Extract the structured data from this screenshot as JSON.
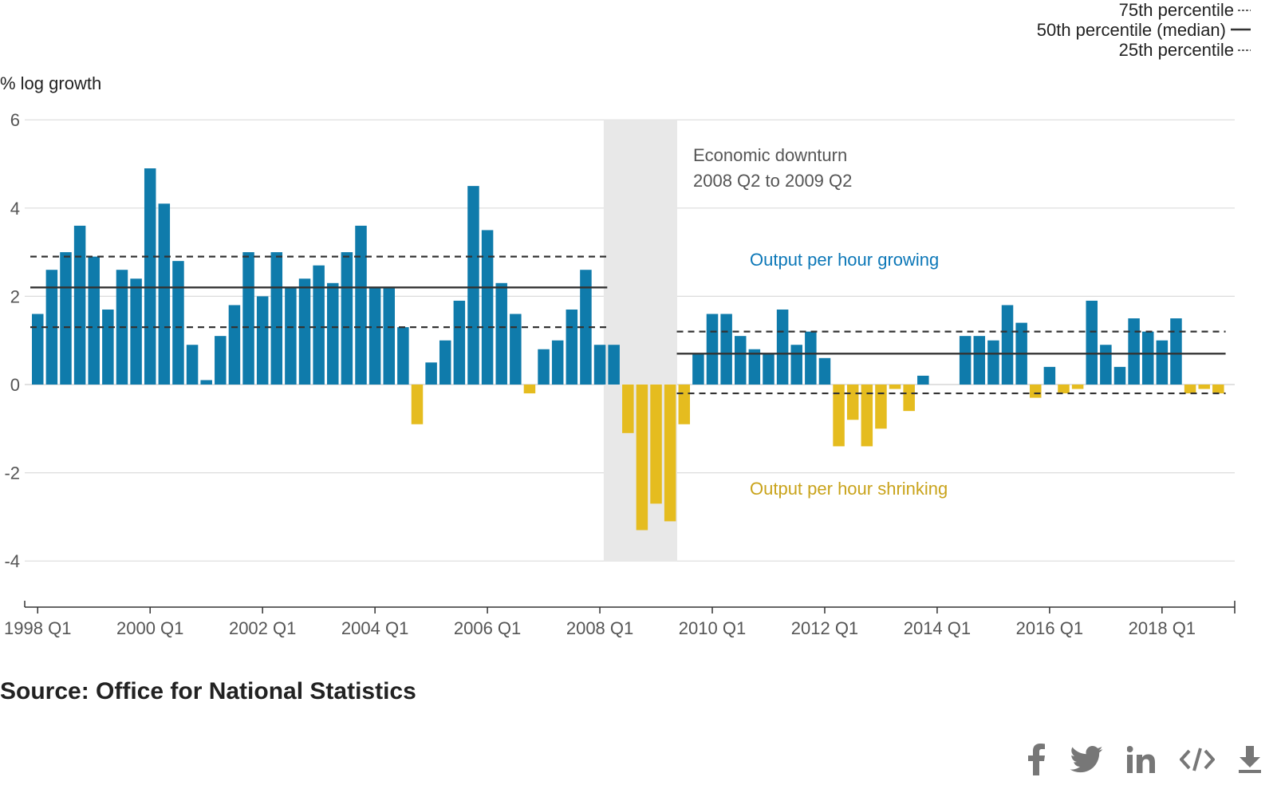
{
  "chart_data": {
    "type": "bar",
    "ylabel": "% log growth",
    "ylim": [
      -5,
      6
    ],
    "yticks": [
      6,
      4,
      2,
      0,
      -2,
      -4
    ],
    "xtick_labels": [
      "1998 Q1",
      "2000 Q1",
      "2002 Q1",
      "2004 Q1",
      "2006 Q1",
      "2008 Q1",
      "2010 Q1",
      "2012 Q1",
      "2014 Q1",
      "2016 Q1",
      "2018 Q1"
    ],
    "categories": [
      "1998 Q1",
      "1998 Q2",
      "1998 Q3",
      "1998 Q4",
      "1999 Q1",
      "1999 Q2",
      "1999 Q3",
      "1999 Q4",
      "2000 Q1",
      "2000 Q2",
      "2000 Q3",
      "2000 Q4",
      "2001 Q1",
      "2001 Q2",
      "2001 Q3",
      "2001 Q4",
      "2002 Q1",
      "2002 Q2",
      "2002 Q3",
      "2002 Q4",
      "2003 Q1",
      "2003 Q2",
      "2003 Q3",
      "2003 Q4",
      "2004 Q1",
      "2004 Q2",
      "2004 Q3",
      "2004 Q4",
      "2005 Q1",
      "2005 Q2",
      "2005 Q3",
      "2005 Q4",
      "2006 Q1",
      "2006 Q2",
      "2006 Q3",
      "2006 Q4",
      "2007 Q1",
      "2007 Q2",
      "2007 Q3",
      "2007 Q4",
      "2008 Q1",
      "2008 Q2",
      "2008 Q3",
      "2008 Q4",
      "2009 Q1",
      "2009 Q2",
      "2009 Q3",
      "2009 Q4",
      "2010 Q1",
      "2010 Q2",
      "2010 Q3",
      "2010 Q4",
      "2011 Q1",
      "2011 Q2",
      "2011 Q3",
      "2011 Q4",
      "2012 Q1",
      "2012 Q2",
      "2012 Q3",
      "2012 Q4",
      "2013 Q1",
      "2013 Q2",
      "2013 Q3",
      "2013 Q4",
      "2014 Q1",
      "2014 Q2",
      "2014 Q3",
      "2014 Q4",
      "2015 Q1",
      "2015 Q2",
      "2015 Q3",
      "2015 Q4",
      "2016 Q1",
      "2016 Q2",
      "2016 Q3",
      "2016 Q4",
      "2017 Q1",
      "2017 Q2",
      "2017 Q3",
      "2017 Q4",
      "2018 Q1",
      "2018 Q2",
      "2018 Q3",
      "2018 Q4",
      "2019 Q1"
    ],
    "values": [
      1.6,
      2.6,
      3.0,
      3.6,
      2.9,
      1.7,
      2.6,
      2.4,
      4.9,
      4.1,
      2.8,
      0.9,
      0.1,
      1.1,
      1.8,
      3.0,
      2.0,
      3.0,
      2.2,
      2.4,
      2.7,
      2.3,
      3.0,
      3.6,
      2.2,
      2.2,
      1.3,
      -0.9,
      0.5,
      1.0,
      1.9,
      4.5,
      3.5,
      2.3,
      1.6,
      -0.2,
      0.8,
      1.0,
      1.7,
      2.6,
      0.9,
      0.9,
      -1.1,
      -3.3,
      -2.7,
      -3.1,
      -0.9,
      0.7,
      1.6,
      1.6,
      1.1,
      0.8,
      0.7,
      1.7,
      0.9,
      1.2,
      0.6,
      -1.4,
      -0.8,
      -1.4,
      -1.0,
      -0.1,
      -0.6,
      0.2,
      0.0,
      0.0,
      1.1,
      1.1,
      1.0,
      1.8,
      1.4,
      -0.3,
      0.4,
      -0.2,
      -0.1,
      1.9,
      0.9,
      0.4,
      1.5,
      1.2,
      1.0,
      1.5,
      -0.2,
      -0.1,
      -0.2
    ],
    "colors": {
      "positive": "#0f7bab",
      "negative": "#e5bc1f",
      "positive_label": "#0d78b8",
      "negative_label": "#c9a31b",
      "shading": "#e8e8e8",
      "grid": "#dcdcdc",
      "axis": "#333333",
      "reference_line": "#333333",
      "text": "#222222",
      "muted_text": "#555555",
      "icon": "#777777"
    },
    "shaded_region": {
      "start": "2008 Q2",
      "end": "2009 Q2",
      "label_line1": "Economic downturn",
      "label_line2": "2008 Q2 to 2009 Q2"
    },
    "reference_lines": {
      "pre_downturn": {
        "start": "1998 Q1",
        "end": "2008 Q1",
        "p75": 2.9,
        "median": 2.2,
        "p25": 1.3
      },
      "post_downturn": {
        "start": "2009 Q3",
        "end": "2019 Q1",
        "p75": 1.2,
        "median": 0.7,
        "p25": -0.2
      }
    },
    "annotations": {
      "growing": "Output per hour growing",
      "shrinking": "Output per hour shrinking"
    },
    "legend": {
      "placement": "top-right",
      "p75": "75th percentile",
      "median": "50th percentile (median)",
      "p25": "25th percentile"
    },
    "grid": true
  },
  "source": "Source: Office for National Statistics",
  "share_icons": [
    "facebook-icon",
    "twitter-icon",
    "linkedin-icon",
    "embed-code-icon",
    "download-icon"
  ]
}
